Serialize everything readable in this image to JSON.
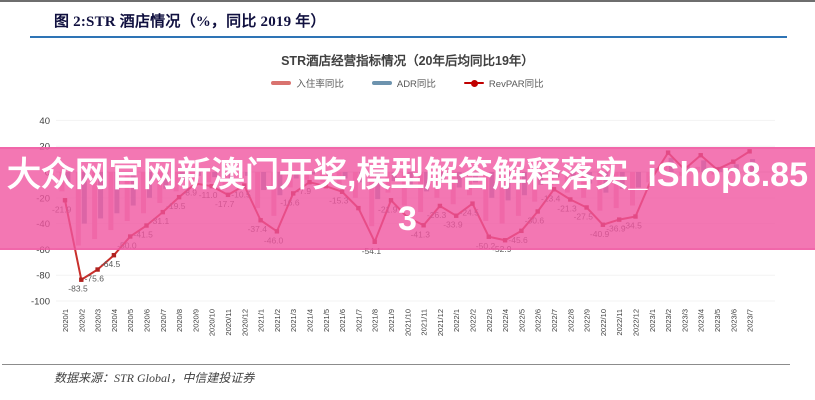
{
  "header": {
    "title": "图 2:STR 酒店情况（%，同比 2019 年）"
  },
  "watermark": {
    "text": "大众网官网新澳门开奖,模型解答解释落实_iShop8.853",
    "color": "#f055a0"
  },
  "footer": {
    "source": "数据来源：STR Global，中信建投证券"
  },
  "colors": {
    "accent_rule": "#2e74b5",
    "occupancy_bar": "#eeafc6",
    "adr_bar": "#8099b8",
    "revpar_line": "#c9302c",
    "revpar_marker": "#b0221f",
    "point_label": "#595959",
    "axis_label": "#404040"
  },
  "chart_data": {
    "type": "bar",
    "title": "STR酒店经营指标情况（20年后均同比19年）",
    "xlabel": "",
    "ylabel": "",
    "ylim": [
      -100,
      40
    ],
    "yticks": [
      40,
      20,
      0,
      -20,
      -40,
      -60,
      -80,
      -100
    ],
    "grid": "light-horizontal",
    "legend_position": "top",
    "categories": [
      "2020/1",
      "2020/2",
      "2020/3",
      "2020/4",
      "2020/5",
      "2020/6",
      "2020/7",
      "2020/8",
      "2020/9",
      "2020/10",
      "2020/11",
      "2020/12",
      "2021/1",
      "2021/2",
      "2021/3",
      "2021/4",
      "2021/5",
      "2021/6",
      "2021/7",
      "2021/8",
      "2021/9",
      "2021/10",
      "2021/11",
      "2021/12",
      "2022/1",
      "2022/2",
      "2022/3",
      "2022/4",
      "2022/5",
      "2022/6",
      "2022/7",
      "2022/8",
      "2022/9",
      "2022/10",
      "2022/11",
      "2022/12",
      "2023/1",
      "2023/2",
      "2023/3",
      "2023/4",
      "2023/5",
      "2023/6",
      "2023/7"
    ],
    "series": [
      {
        "name": "入住率同比",
        "kind": "bar",
        "color": "#eeafc6",
        "values": [
          -15,
          -57,
          -52,
          -45,
          -38,
          -32,
          -24,
          -15,
          -7,
          -8,
          -13,
          -8,
          -28,
          -34,
          -12,
          -6,
          -8,
          -11,
          -20,
          -42,
          -16,
          -26,
          -31,
          -20,
          -25,
          -18,
          -38,
          -40,
          -34,
          -23,
          -10,
          -16,
          -20,
          -30,
          -28,
          -26,
          -8,
          5,
          -3,
          4,
          -2,
          2,
          6
        ]
      },
      {
        "name": "ADR同比",
        "kind": "bar",
        "color": "#8099b8",
        "values": [
          -8,
          -40,
          -36,
          -32,
          -26,
          -20,
          -13,
          -7,
          -3,
          -4,
          -6,
          -3,
          -14,
          -18,
          -5,
          -2,
          -3,
          -5,
          -8,
          -21,
          -7,
          -12,
          -15,
          -8,
          -12,
          -8,
          -20,
          -22,
          -18,
          -10,
          -4,
          -6,
          -9,
          -16,
          -13,
          -12,
          3,
          11,
          5,
          9,
          4,
          6,
          10
        ]
      },
      {
        "name": "RevPAR同比",
        "kind": "line",
        "color": "#c9302c",
        "values": [
          -21.9,
          -83.5,
          -75.6,
          -64.5,
          -50.0,
          -41.5,
          -31.1,
          -19.5,
          -8.9,
          -11.0,
          -17.7,
          -10.5,
          -37.4,
          -46.0,
          -16.6,
          -7.9,
          -11.0,
          -15.3,
          -28.0,
          -54.1,
          -21.9,
          -35.0,
          -41.3,
          -26.3,
          -33.9,
          -24.5,
          -50.2,
          -52.9,
          -45.6,
          -30.6,
          -13.4,
          -21.3,
          -27.5,
          -40.9,
          -36.9,
          -34.5,
          -5.0,
          15.0,
          2.0,
          13.0,
          2.0,
          8.0,
          16.0
        ],
        "labels": [
          "-21.9",
          "-83.5",
          "-75.6",
          "-64.5",
          "-50.0",
          "-41.5",
          "-31.1",
          "-19.5",
          "-8.9",
          "-11.0",
          "-17.7",
          "-10.5",
          "-37.4",
          "-46.0",
          "-16.6",
          "-7.9",
          null,
          "-15.3",
          null,
          "-54.1",
          "-21.9",
          null,
          "-41.3",
          "-26.3",
          "-33.9",
          "-24.5",
          "-50.2",
          "-52.9",
          "-45.6",
          "-30.6",
          "-13.4",
          "-21.3",
          "-27.5",
          "-40.9",
          "-36.9",
          "-34.5",
          null,
          null,
          null,
          null,
          null,
          null,
          null
        ]
      }
    ]
  }
}
